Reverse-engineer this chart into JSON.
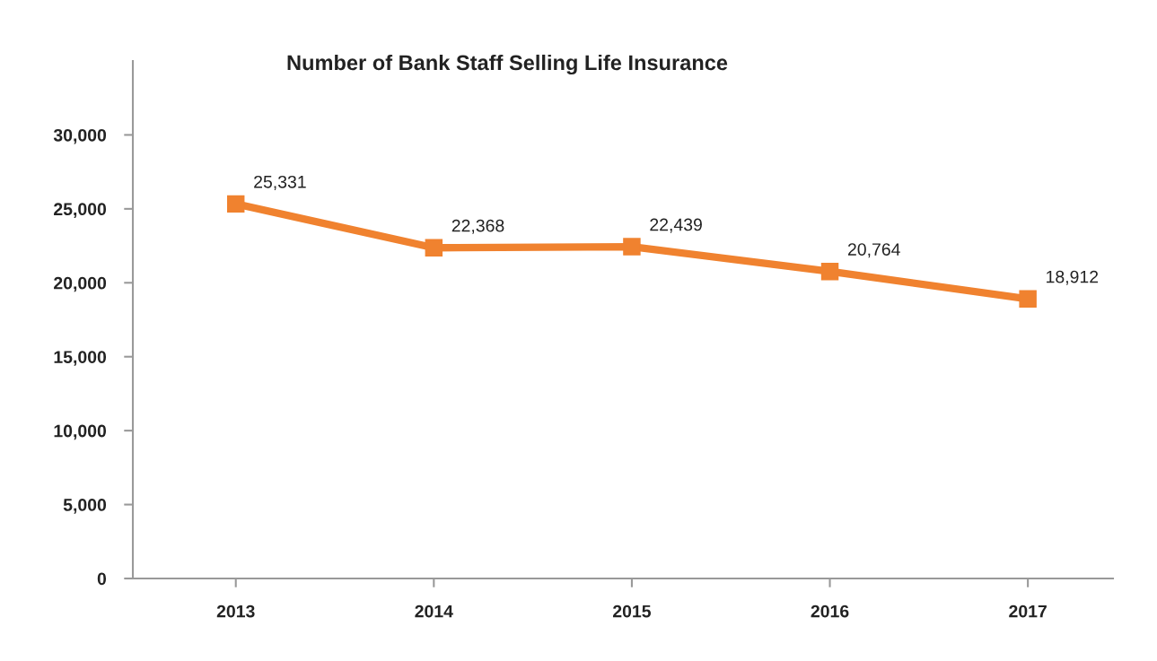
{
  "chart_data": {
    "type": "line",
    "title": "Number of Bank Staff Selling Life Insurance",
    "categories": [
      "2013",
      "2014",
      "2015",
      "2016",
      "2017"
    ],
    "series": [
      {
        "color": "#f0822f",
        "values": [
          25331,
          22368,
          22439,
          20764,
          18912
        ]
      }
    ],
    "ylim": [
      0,
      35000
    ],
    "yticks": [
      0,
      {
        "value": 5000,
        "label": "5,000"
      },
      {
        "value": 10000,
        "label": "10,000"
      },
      {
        "value": 15000,
        "label": "15,000"
      },
      {
        "value": 20000,
        "label": "20,000"
      },
      {
        "value": 25000,
        "label": "25,000"
      },
      {
        "value": 30000,
        "label": "30,000"
      }
    ],
    "value_labels": [
      "25,331",
      "22,368",
      "22,439",
      "20,764",
      "18,912"
    ],
    "marker": "square",
    "line_style": "solid",
    "grid": false,
    "legend": false
  }
}
